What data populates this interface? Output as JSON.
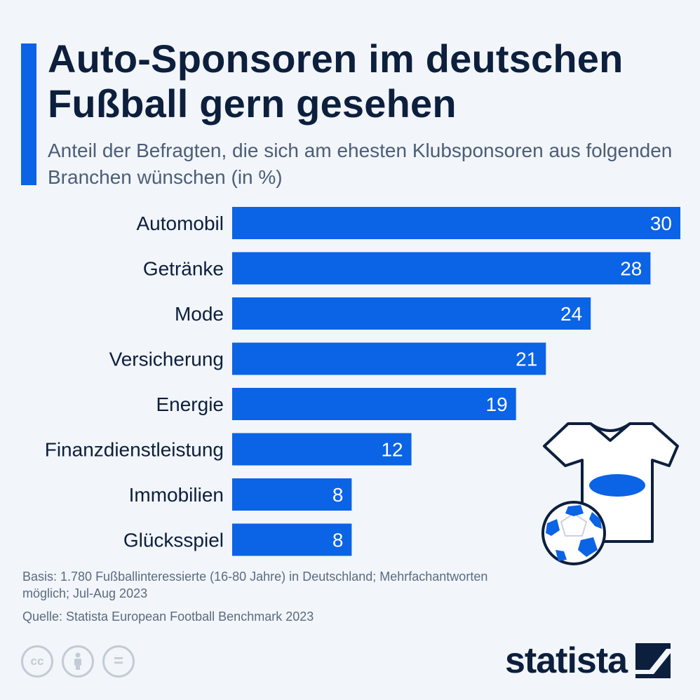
{
  "header": {
    "title": "Auto-Sponsoren im deutschen Fußball gern gesehen",
    "subtitle": "Anteil der Befragten, die sich am ehesten Klubsponsoren aus folgenden Branchen wünschen (in %)"
  },
  "colors": {
    "bar": "#0b63e5",
    "accent": "#0b63e5",
    "text": "#0c1f3d",
    "background": "#f2f5f9"
  },
  "chart_data": {
    "type": "bar",
    "orientation": "horizontal",
    "categories": [
      "Automobil",
      "Getränke",
      "Mode",
      "Versicherung",
      "Energie",
      "Finanzdienstleistung",
      "Immobilien",
      "Glücksspiel"
    ],
    "values": [
      30,
      28,
      24,
      21,
      19,
      12,
      8,
      8
    ],
    "title": "Auto-Sponsoren im deutschen Fußball gern gesehen",
    "subtitle": "Anteil der Befragten, die sich am ehesten Klubsponsoren aus folgenden Branchen wünschen (in %)",
    "xlim": [
      0,
      30
    ],
    "grid": false,
    "data_labels": true
  },
  "footer": {
    "basis": "Basis: 1.780 Fußballinteressierte (16-80 Jahre) in Deutschland; Mehrfachantworten möglich; Jul-Aug 2023",
    "source": "Quelle: Statista European Football Benchmark 2023"
  },
  "license_icons": [
    "cc-icon",
    "person-icon",
    "equals-icon"
  ],
  "license": {
    "cc": "cc",
    "equals": "="
  },
  "brand": {
    "name": "statista"
  }
}
